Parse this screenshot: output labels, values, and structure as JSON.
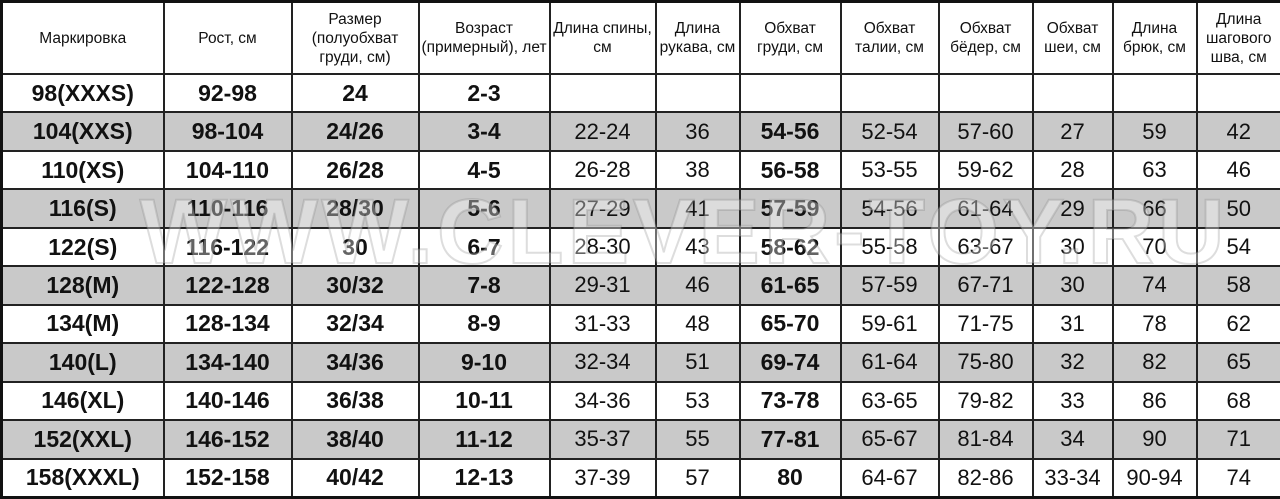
{
  "headers": [
    "Маркировка",
    "Рост, см",
    "Размер (полуобхват груди, см)",
    "Возраст (примерный), лет",
    "Длина спины, см",
    "Длина рукава, см",
    "Обхват груди, см",
    "Обхват талии, см",
    "Обхват бёдер, см",
    "Обхват шеи, см",
    "Длина брюк, см",
    "Длина шагового шва, см"
  ],
  "rows": [
    [
      "98(XXXS)",
      "92-98",
      "24",
      "2-3",
      "",
      "",
      "",
      "",
      "",
      "",
      "",
      ""
    ],
    [
      "104(XXS)",
      "98-104",
      "24/26",
      "3-4",
      "22-24",
      "36",
      "54-56",
      "52-54",
      "57-60",
      "27",
      "59",
      "42"
    ],
    [
      "110(XS)",
      "104-110",
      "26/28",
      "4-5",
      "26-28",
      "38",
      "56-58",
      "53-55",
      "59-62",
      "28",
      "63",
      "46"
    ],
    [
      "116(S)",
      "110-116",
      "28/30",
      "5-6",
      "27-29",
      "41",
      "57-59",
      "54-56",
      "61-64",
      "29",
      "66",
      "50"
    ],
    [
      "122(S)",
      "116-122",
      "30",
      "6-7",
      "28-30",
      "43",
      "58-62",
      "55-58",
      "63-67",
      "30",
      "70",
      "54"
    ],
    [
      "128(M)",
      "122-128",
      "30/32",
      "7-8",
      "29-31",
      "46",
      "61-65",
      "57-59",
      "67-71",
      "30",
      "74",
      "58"
    ],
    [
      "134(M)",
      "128-134",
      "32/34",
      "8-9",
      "31-33",
      "48",
      "65-70",
      "59-61",
      "71-75",
      "31",
      "78",
      "62"
    ],
    [
      "140(L)",
      "134-140",
      "34/36",
      "9-10",
      "32-34",
      "51",
      "69-74",
      "61-64",
      "75-80",
      "32",
      "82",
      "65"
    ],
    [
      "146(XL)",
      "140-146",
      "36/38",
      "10-11",
      "34-36",
      "53",
      "73-78",
      "63-65",
      "79-82",
      "33",
      "86",
      "68"
    ],
    [
      "152(XXL)",
      "146-152",
      "38/40",
      "11-12",
      "35-37",
      "55",
      "77-81",
      "65-67",
      "81-84",
      "34",
      "90",
      "71"
    ],
    [
      "158(XXXL)",
      "152-158",
      "40/42",
      "12-13",
      "37-39",
      "57",
      "80",
      "64-67",
      "82-86",
      "33-34",
      "90-94",
      "74"
    ]
  ],
  "bold_columns": [
    0,
    1,
    2,
    3,
    6
  ],
  "colors": {
    "stripe": "#c9c9c9",
    "border": "#222222"
  },
  "watermark": "WWW.CLEVER-TOY.RU"
}
